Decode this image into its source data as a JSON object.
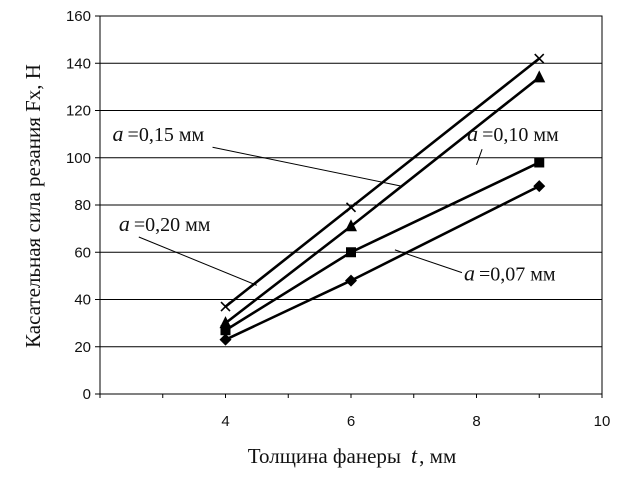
{
  "chart_data": {
    "type": "line",
    "title": "",
    "xlabel": "Толщина фанеры",
    "xlabel_var": "t",
    "xlabel_unit": ", мм",
    "ylabel": "Касательная сила резания Fx,  Н",
    "xlim": [
      2,
      10
    ],
    "ylim": [
      0,
      160
    ],
    "x_ticks": [
      "4",
      "6",
      "8",
      "10"
    ],
    "y_ticks": [
      "0",
      "20",
      "40",
      "60",
      "80",
      "100",
      "120",
      "140",
      "160"
    ],
    "grid": "horizontal",
    "legend": "none",
    "line_color": "#000000",
    "series": [
      {
        "marker": "x-cross",
        "x": [
          4,
          6,
          9
        ],
        "y": [
          37,
          79,
          142
        ]
      },
      {
        "marker": "triangle",
        "x": [
          4,
          6,
          9
        ],
        "y": [
          30,
          71,
          134
        ]
      },
      {
        "marker": "square",
        "x": [
          4,
          6,
          9
        ],
        "y": [
          27,
          60,
          98
        ]
      },
      {
        "marker": "diamond",
        "x": [
          4,
          6,
          9
        ],
        "y": [
          23,
          48,
          88
        ]
      }
    ],
    "annotations": [
      {
        "var": "a",
        "text": "=0,15 мм",
        "label_x": 2.2,
        "label_y": 107,
        "arrow_to": [
          6.8,
          88
        ]
      },
      {
        "var": "a",
        "text": "=0,10 мм",
        "label_x": 7.85,
        "label_y": 107,
        "arrow_to": [
          8.0,
          97
        ]
      },
      {
        "var": "a",
        "text": "=0,20 мм",
        "label_x": 2.3,
        "label_y": 69,
        "arrow_to": [
          4.5,
          46
        ]
      },
      {
        "var": "a",
        "text": "=0,07 мм",
        "label_x": 7.8,
        "label_y": 48,
        "arrow_to": [
          6.7,
          61
        ]
      }
    ]
  }
}
